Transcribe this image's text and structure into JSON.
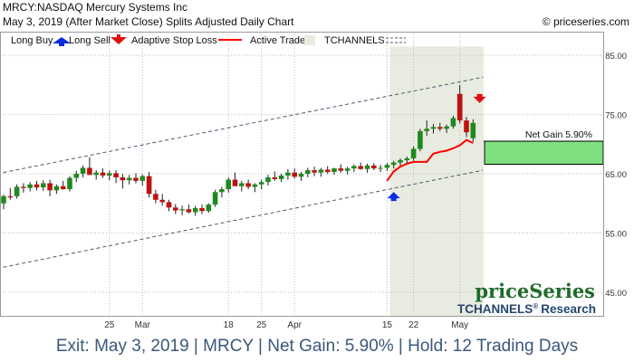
{
  "header": {
    "title": "MRCY:NASDAQ Mercury Systems Inc",
    "subtitle": "May 3, 2019 (After Market Close)  Splits Adjusted Daily Chart",
    "copyright": "© priceseries.com"
  },
  "legend": {
    "long_buy": "Long Buy",
    "long_sell": "Long Sell",
    "adaptive_stop": "Adaptive Stop Loss",
    "active_trade": "Active Trade",
    "tchannels": "TCHANNELS"
  },
  "branding": {
    "logo": "priceSeries",
    "product": "TCHANNELS",
    "reg": "®",
    "research": "Research"
  },
  "footer": {
    "text": "Exit: May 3, 2019 | MRCY | Net Gain: 5.90% | Hold: 12 Trading Days"
  },
  "colors": {
    "up": "#1f8a1f",
    "down": "#c01010",
    "stop": "#ff0000",
    "trade_zone": "#e8ebdf",
    "gain_box": "#7fe07f",
    "channel": "#4a5a70",
    "grid": "#bdbdbd"
  },
  "chart_data": {
    "type": "candlestick",
    "ylim": [
      41,
      89
    ],
    "yticks": [
      45,
      55,
      65,
      75,
      85
    ],
    "ytick_labels": [
      "45.00",
      "55.00",
      "65.00",
      "75.00",
      "85.00"
    ],
    "xticks": [
      {
        "label": "25",
        "i": 16
      },
      {
        "label": "Mar",
        "i": 21
      },
      {
        "label": "18",
        "i": 34
      },
      {
        "label": "25",
        "i": 39
      },
      {
        "label": "Apr",
        "i": 44
      },
      {
        "label": "15",
        "i": 58
      },
      {
        "label": "22",
        "i": 62
      },
      {
        "label": "May",
        "i": 69
      }
    ],
    "candles": [
      [
        60.0,
        61.5,
        59.0,
        61.2
      ],
      [
        61.2,
        62.6,
        60.6,
        61.0
      ],
      [
        61.2,
        63.2,
        60.8,
        62.8
      ],
      [
        62.8,
        63.4,
        61.8,
        62.6
      ],
      [
        62.6,
        63.6,
        62.0,
        63.2
      ],
      [
        63.2,
        63.8,
        62.2,
        62.7
      ],
      [
        62.7,
        63.9,
        62.1,
        63.4
      ],
      [
        63.4,
        64.0,
        61.2,
        62.2
      ],
      [
        62.2,
        63.2,
        61.6,
        62.9
      ],
      [
        62.9,
        63.8,
        62.3,
        62.4
      ],
      [
        62.4,
        64.6,
        62.0,
        64.3
      ],
      [
        64.3,
        65.5,
        63.6,
        65.0
      ],
      [
        65.0,
        66.4,
        64.4,
        66.0
      ],
      [
        66.0,
        67.8,
        65.0,
        64.8
      ],
      [
        64.8,
        65.6,
        64.0,
        65.2
      ],
      [
        65.2,
        65.9,
        64.3,
        64.7
      ],
      [
        64.7,
        65.5,
        63.9,
        65.1
      ],
      [
        65.1,
        65.6,
        63.4,
        64.4
      ],
      [
        64.4,
        65.0,
        62.5,
        63.9
      ],
      [
        63.9,
        64.8,
        63.2,
        64.3
      ],
      [
        64.3,
        65.1,
        63.4,
        63.8
      ],
      [
        63.8,
        64.9,
        63.0,
        64.6
      ],
      [
        64.6,
        65.3,
        61.0,
        61.6
      ],
      [
        61.6,
        62.3,
        60.0,
        60.6
      ],
      [
        60.6,
        61.6,
        59.6,
        60.2
      ],
      [
        60.2,
        60.6,
        58.7,
        59.3
      ],
      [
        59.3,
        59.9,
        58.2,
        58.8
      ],
      [
        58.8,
        59.6,
        58.0,
        59.0
      ],
      [
        59.0,
        59.8,
        58.3,
        58.5
      ],
      [
        58.5,
        59.6,
        57.9,
        59.2
      ],
      [
        59.2,
        59.8,
        58.2,
        58.7
      ],
      [
        58.7,
        60.0,
        58.4,
        59.8
      ],
      [
        59.8,
        62.3,
        59.4,
        61.9
      ],
      [
        61.9,
        62.8,
        61.0,
        62.4
      ],
      [
        62.4,
        64.4,
        61.8,
        64.0
      ],
      [
        64.0,
        65.2,
        63.2,
        62.9
      ],
      [
        62.9,
        63.8,
        62.0,
        63.4
      ],
      [
        63.4,
        64.0,
        62.4,
        62.8
      ],
      [
        62.8,
        63.4,
        61.9,
        63.2
      ],
      [
        63.2,
        64.0,
        62.4,
        63.6
      ],
      [
        63.6,
        64.8,
        63.0,
        64.4
      ],
      [
        64.4,
        65.4,
        63.8,
        64.1
      ],
      [
        64.1,
        65.0,
        63.6,
        64.7
      ],
      [
        64.7,
        65.8,
        64.0,
        65.2
      ],
      [
        65.2,
        65.9,
        64.2,
        64.5
      ],
      [
        64.5,
        65.3,
        63.8,
        65.0
      ],
      [
        65.0,
        66.0,
        64.4,
        65.6
      ],
      [
        65.6,
        66.2,
        64.6,
        65.2
      ],
      [
        65.2,
        66.0,
        64.5,
        65.7
      ],
      [
        65.7,
        66.3,
        65.0,
        65.3
      ],
      [
        65.3,
        66.0,
        64.8,
        65.9
      ],
      [
        65.9,
        66.6,
        65.2,
        65.5
      ],
      [
        65.5,
        66.2,
        64.9,
        65.9
      ],
      [
        65.9,
        66.6,
        65.3,
        66.3
      ],
      [
        66.3,
        66.9,
        65.7,
        65.8
      ],
      [
        65.8,
        66.7,
        65.2,
        66.4
      ],
      [
        66.4,
        66.8,
        65.6,
        65.9
      ],
      [
        65.9,
        66.5,
        65.3,
        66.0
      ],
      [
        66.0,
        66.8,
        65.5,
        66.5
      ],
      [
        66.5,
        67.2,
        65.9,
        66.9
      ],
      [
        66.9,
        67.6,
        66.2,
        67.3
      ],
      [
        67.3,
        67.9,
        66.8,
        67.6
      ],
      [
        67.6,
        69.6,
        67.2,
        69.2
      ],
      [
        69.2,
        72.6,
        68.8,
        72.2
      ],
      [
        72.2,
        74.0,
        71.4,
        72.6
      ],
      [
        72.6,
        73.4,
        71.8,
        72.9
      ],
      [
        72.9,
        73.6,
        72.2,
        72.6
      ],
      [
        72.6,
        73.3,
        71.9,
        73.0
      ],
      [
        73.0,
        74.8,
        72.6,
        74.4
      ],
      [
        78.5,
        80.0,
        73.5,
        74.0
      ],
      [
        74.0,
        74.6,
        71.2,
        72.0
      ],
      [
        71.0,
        74.2,
        70.4,
        73.6
      ]
    ],
    "stop_line": [
      {
        "i": 58,
        "v": 63.8
      },
      {
        "i": 59,
        "v": 65.4
      },
      {
        "i": 60,
        "v": 66.2
      },
      {
        "i": 61,
        "v": 66.7
      },
      {
        "i": 62,
        "v": 67.0
      },
      {
        "i": 63,
        "v": 67.0
      },
      {
        "i": 64,
        "v": 67.0
      },
      {
        "i": 65,
        "v": 68.4
      },
      {
        "i": 66,
        "v": 68.7
      },
      {
        "i": 67,
        "v": 68.9
      },
      {
        "i": 68,
        "v": 69.3
      },
      {
        "i": 69,
        "v": 69.8
      },
      {
        "i": 70,
        "v": 70.7
      },
      {
        "i": 71,
        "v": 70.2
      }
    ],
    "channel_upper": [
      {
        "i": -1,
        "v": 65.0
      },
      {
        "i": 72.5,
        "v": 81.3
      }
    ],
    "channel_lower": [
      {
        "i": -1,
        "v": 49.0
      },
      {
        "i": 72.5,
        "v": 65.6
      }
    ],
    "buy_signal": {
      "i": 59,
      "v": 61.0
    },
    "sell_signal": {
      "i": 72,
      "v": 77.7
    },
    "trade_zone": {
      "start_i": 59,
      "end_i": 73
    },
    "net_gain": {
      "label": "Net Gain 5.90%",
      "from": 66.6,
      "to": 70.5
    }
  }
}
